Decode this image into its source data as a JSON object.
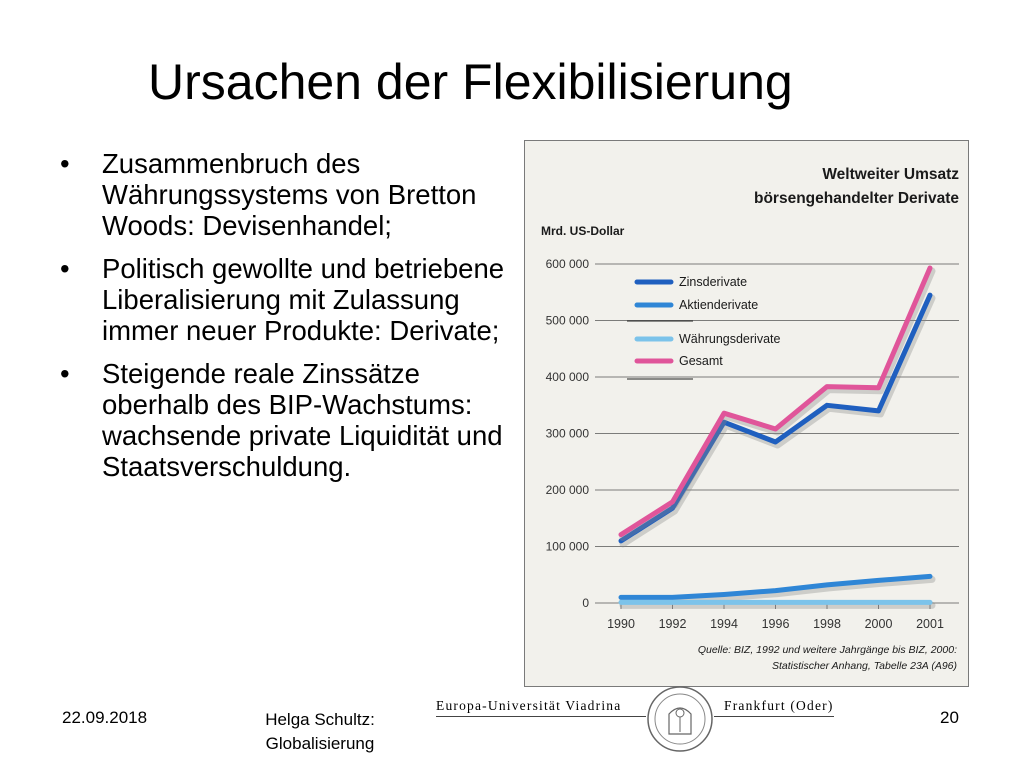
{
  "slide": {
    "title": "Ursachen der Flexibilisierung",
    "bullets": [
      "Zusammenbruch des Währungssystems von Bretton Woods: Devisenhandel;",
      "Politisch gewollte und betriebene Liberalisierung mit Zulassung immer neuer Produkte: Derivate;",
      "Steigende reale Zinssätze oberhalb des BIP-Wachstums: wachsende private Liquidität und Staatsverschuldung."
    ],
    "bullet_char": "•"
  },
  "footer": {
    "date": "22.09.2018",
    "author_line1": "Helga Schultz:",
    "author_line2": "Globalisierung",
    "page": "20",
    "university_left": "Europa-Universität Viadrina",
    "university_right": "Frankfurt (Oder)"
  },
  "chart_data": {
    "type": "line",
    "title": "Weltweiter Umsatz börsengehandelter Derivate",
    "title_lines": [
      "Weltweiter Umsatz",
      "börsengehandelter Derivate"
    ],
    "ylabel": "Mrd. US-Dollar",
    "x": [
      "1990",
      "1992",
      "1994",
      "1996",
      "1998",
      "2000",
      "2001"
    ],
    "ylim": [
      0,
      600000
    ],
    "yticks": [
      0,
      100000,
      200000,
      300000,
      400000,
      500000,
      600000
    ],
    "ytick_labels": [
      "0",
      "100 000",
      "200 000",
      "300 000",
      "400 000",
      "500 000",
      "600 000"
    ],
    "grid": true,
    "legend_position": "top-left",
    "series": [
      {
        "name": "Zinsderivate",
        "color": "#1f5fbf",
        "values": [
          110000,
          168000,
          320000,
          285000,
          350000,
          340000,
          545000
        ]
      },
      {
        "name": "Aktienderivate",
        "color": "#2f86d6",
        "values": [
          10000,
          10000,
          15000,
          22000,
          32000,
          40000,
          47000
        ]
      },
      {
        "name": "Währungsderivate",
        "color": "#7cc3ea",
        "values": [
          1000,
          1000,
          1000,
          1000,
          1000,
          1000,
          1000
        ]
      },
      {
        "name": "Gesamt",
        "color": "#e0559a",
        "values": [
          121000,
          179000,
          336000,
          308000,
          383000,
          381000,
          593000
        ]
      }
    ],
    "source": [
      "Quelle: BIZ, 1992 und weitere Jahrgänge bis BIZ, 2000:",
      "Statistischer Anhang, Tabelle 23A (A96)"
    ]
  }
}
